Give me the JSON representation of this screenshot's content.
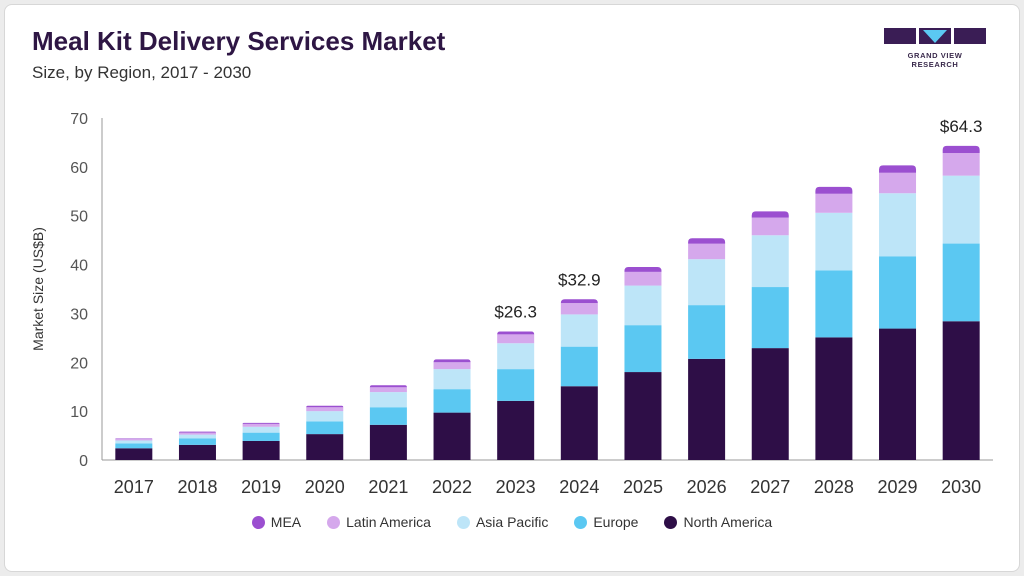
{
  "header": {
    "title": "Meal Kit Delivery Services Market",
    "subtitle": "Size, by Region, 2017 - 2030"
  },
  "brand": {
    "logo_text": "GRAND VIEW RESEARCH",
    "logo_icon": "gvr-logo-icon"
  },
  "colors": {
    "MEA": "#9b4fd0",
    "Latin America": "#d5a8ec",
    "Asia Pacific": "#bde5f8",
    "Europe": "#5bc8f2",
    "North America": "#2e0e47"
  },
  "chart_data": {
    "type": "bar",
    "stacked": true,
    "title": "Meal Kit Delivery Services Market",
    "subtitle": "Size, by Region, 2017 - 2030",
    "xlabel": "",
    "ylabel": "Market Size (US$B)",
    "ylim": [
      0,
      70
    ],
    "yticks": [
      0,
      10,
      20,
      30,
      40,
      50,
      60,
      70
    ],
    "grid": false,
    "legend_position": "bottom",
    "categories": [
      "2017",
      "2018",
      "2019",
      "2020",
      "2021",
      "2022",
      "2023",
      "2024",
      "2025",
      "2026",
      "2027",
      "2028",
      "2029",
      "2030"
    ],
    "series": [
      {
        "name": "North America",
        "values": [
          2.4,
          3.1,
          3.9,
          5.3,
          7.2,
          9.7,
          12.1,
          15.1,
          18.0,
          20.7,
          22.9,
          25.1,
          26.9,
          28.4
        ]
      },
      {
        "name": "Europe",
        "values": [
          1.0,
          1.3,
          1.7,
          2.6,
          3.6,
          4.8,
          6.5,
          8.1,
          9.6,
          11.0,
          12.5,
          13.7,
          14.8,
          15.9
        ]
      },
      {
        "name": "Asia Pacific",
        "values": [
          0.6,
          0.8,
          1.2,
          2.1,
          3.1,
          4.1,
          5.3,
          6.6,
          8.1,
          9.4,
          10.6,
          11.8,
          12.9,
          13.9
        ]
      },
      {
        "name": "Latin America",
        "values": [
          0.3,
          0.4,
          0.6,
          0.8,
          1.0,
          1.4,
          1.8,
          2.3,
          2.8,
          3.2,
          3.6,
          3.9,
          4.2,
          4.6
        ]
      },
      {
        "name": "MEA",
        "values": [
          0.1,
          0.2,
          0.2,
          0.3,
          0.4,
          0.6,
          0.6,
          0.8,
          1.0,
          1.1,
          1.3,
          1.4,
          1.5,
          1.5
        ]
      }
    ],
    "annotations": [
      {
        "category": "2023",
        "text": "$26.3"
      },
      {
        "category": "2024",
        "text": "$32.9"
      },
      {
        "category": "2030",
        "text": "$64.3"
      }
    ]
  }
}
